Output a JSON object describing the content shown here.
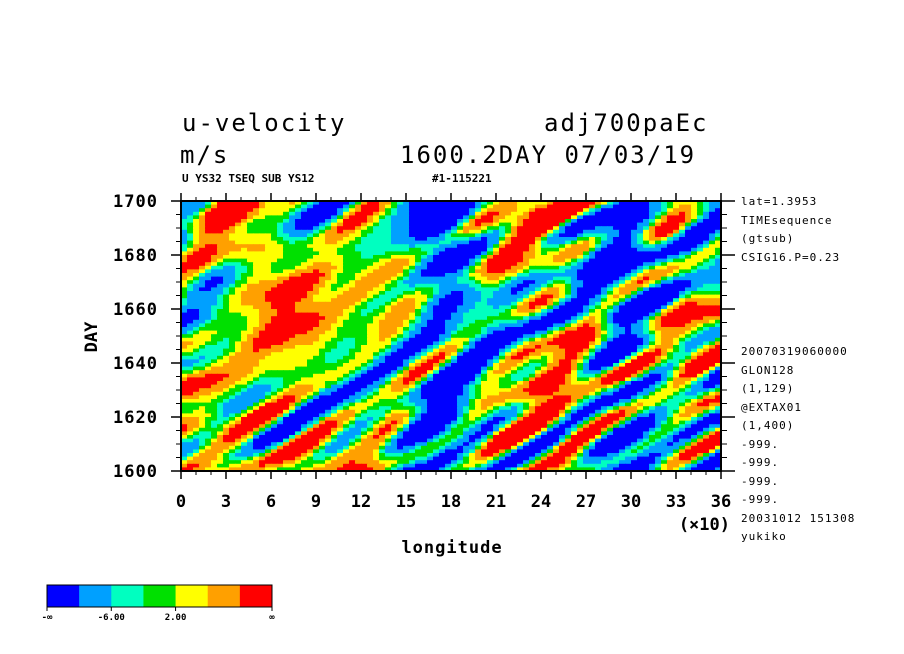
{
  "header": {
    "variable": "u-velocity",
    "experiment": "adj700paEc",
    "units": "m/s",
    "time_label": "1600.2DAY 07/03/19",
    "subtitle_left": "U YS32 TSEQ SUB YS12",
    "subtitle_right": "#1-115221"
  },
  "side_info": {
    "top": [
      "lat=1.3953",
      "TIMEsequence",
      "(gtsub)",
      "CSIG16.P=0.23"
    ],
    "bottom": [
      "20070319060000",
      "GLON128",
      "(1,129)",
      "@EXTAX01",
      "(1,400)",
      "-999.",
      "-999.",
      "-999.",
      "-999.",
      "20031012 151308",
      "yukiko"
    ]
  },
  "chart_data": {
    "type": "heatmap",
    "xlabel": "longitude",
    "x_multiplier": "(×10)",
    "ylabel": "DAY",
    "xlim": [
      0,
      36
    ],
    "ylim": [
      1600,
      1700
    ],
    "x_ticks": [
      "0",
      "3",
      "6",
      "9",
      "12",
      "15",
      "18",
      "21",
      "24",
      "27",
      "30",
      "33",
      "36"
    ],
    "y_ticks": [
      "1600",
      "1620",
      "1640",
      "1660",
      "1680",
      "1700"
    ],
    "colorbar": {
      "colors": [
        "#0000ff",
        "#00a0ff",
        "#00ffc0",
        "#00e000",
        "#ffff00",
        "#ffa000",
        "#ff0000"
      ],
      "labels": [
        "-∞",
        "-6.00",
        "2.00",
        "∞"
      ]
    },
    "dominant_pattern": {
      "negative_bands_longitude_x10": [
        [
          15,
          20
        ],
        [
          27,
          32
        ]
      ],
      "positive_regions": "red patches mainly at longitude 0-12 and 21-27, eastward tilt with time"
    }
  }
}
